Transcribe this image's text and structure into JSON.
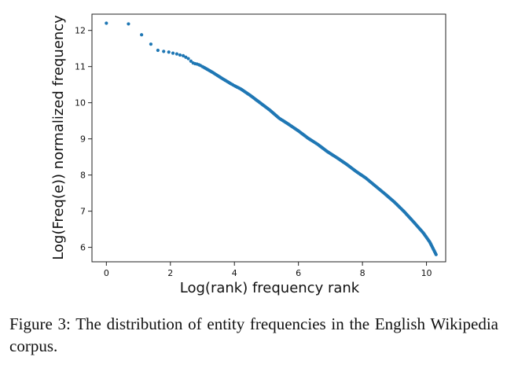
{
  "chart_data": {
    "type": "scatter",
    "xlabel": "Log(rank) frequency rank",
    "ylabel": "Log(Freq(e)) normalized frequency",
    "xlim": [
      -0.45,
      10.6
    ],
    "ylim": [
      5.6,
      12.45
    ],
    "xticks": [
      0,
      2,
      4,
      6,
      8,
      10
    ],
    "yticks": [
      6,
      7,
      8,
      9,
      10,
      11,
      12
    ],
    "grid": false,
    "marker_color": "#1f77b4",
    "series": [
      {
        "x": [
          0.0,
          0.69,
          1.1,
          1.39,
          1.61,
          1.79,
          1.95,
          2.08,
          2.2,
          2.3,
          2.4,
          2.48,
          2.56,
          2.64,
          2.71,
          2.77,
          2.83,
          2.89,
          2.94,
          3.0,
          3.3,
          3.6,
          3.9,
          4.0,
          4.2,
          4.5,
          4.8,
          5.1,
          5.4,
          5.7,
          6.0,
          6.3,
          6.6,
          6.9,
          7.2,
          7.5,
          7.8,
          8.1,
          8.4,
          8.7,
          9.0,
          9.3,
          9.6,
          9.9,
          10.1,
          10.3
        ],
        "y": [
          12.2,
          12.18,
          11.88,
          11.62,
          11.45,
          11.42,
          11.4,
          11.37,
          11.35,
          11.32,
          11.3,
          11.26,
          11.22,
          11.15,
          11.1,
          11.08,
          11.07,
          11.05,
          11.03,
          11.0,
          10.85,
          10.68,
          10.52,
          10.47,
          10.38,
          10.2,
          10.0,
          9.8,
          9.57,
          9.4,
          9.22,
          9.02,
          8.85,
          8.65,
          8.48,
          8.3,
          8.1,
          7.92,
          7.7,
          7.48,
          7.25,
          6.99,
          6.7,
          6.4,
          6.15,
          5.8
        ]
      }
    ]
  },
  "caption": {
    "text": "Figure 3: The distribution of entity frequencies in the English Wikipedia corpus."
  }
}
